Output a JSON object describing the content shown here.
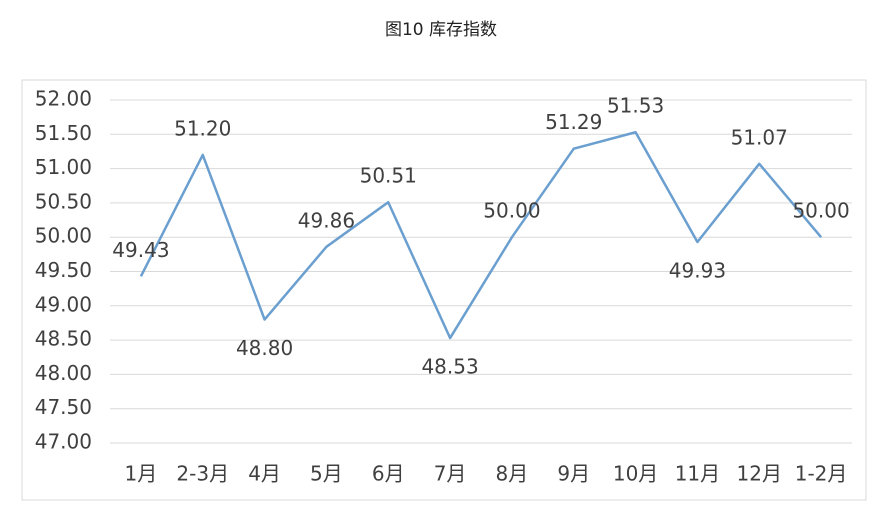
{
  "chart_data": {
    "type": "line",
    "title": "图10 库存指数",
    "categories": [
      "1月",
      "2-3月",
      "4月",
      "5月",
      "6月",
      "7月",
      "8月",
      "9月",
      "10月",
      "11月",
      "12月",
      "1-2月"
    ],
    "values": [
      49.43,
      51.2,
      48.8,
      49.86,
      50.51,
      48.53,
      50,
      51.29,
      51.53,
      49.93,
      51.07,
      50
    ],
    "value_labels": [
      "49.43",
      "51.20",
      "48.80",
      "49.86",
      "50.51",
      "48.53",
      "50.00",
      "51.29",
      "51.53",
      "49.93",
      "51.07",
      "50.00"
    ],
    "color": "#6a9fd0",
    "ylim": [
      47,
      52
    ],
    "yticks": [
      {
        "value": 47,
        "label": "47.00"
      },
      {
        "value": 47.5,
        "label": "47.50"
      },
      {
        "value": 48,
        "label": "48.00"
      },
      {
        "value": 48.5,
        "label": "48.50"
      },
      {
        "value": 49,
        "label": "49.00"
      },
      {
        "value": 49.5,
        "label": "49.50"
      },
      {
        "value": 50,
        "label": "50.00"
      },
      {
        "value": 50.5,
        "label": "50.50"
      },
      {
        "value": 51,
        "label": "51.00"
      },
      {
        "value": 51.5,
        "label": "51.50"
      },
      {
        "value": 52,
        "label": "52.00"
      }
    ],
    "grid": true
  }
}
